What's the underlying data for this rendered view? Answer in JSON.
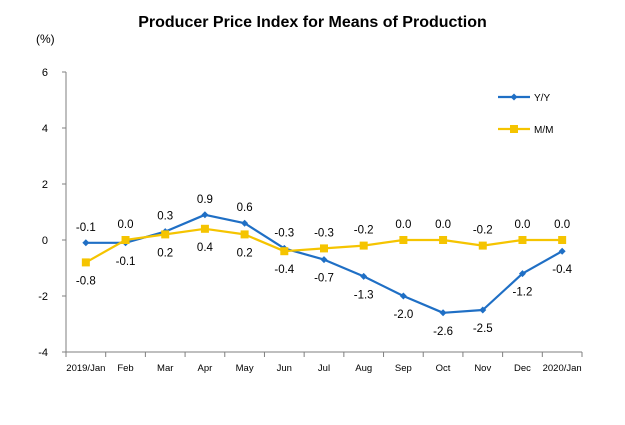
{
  "chart_data": {
    "type": "line",
    "title": "Producer Price Index for Means of Production",
    "ylabel": "(%)",
    "xlabel": "",
    "ylim": [
      -4,
      6
    ],
    "yticks": [
      -4,
      -2,
      0,
      2,
      4,
      6
    ],
    "grid": false,
    "legend_position": "top-right",
    "categories": [
      "2019/Jan",
      "Feb",
      "Mar",
      "Apr",
      "May",
      "Jun",
      "Jul",
      "Aug",
      "Sep",
      "Oct",
      "Nov",
      "Dec",
      "2020/Jan"
    ],
    "series": [
      {
        "name": "Y/Y",
        "color": "#1f6fc5",
        "marker": "diamond",
        "values": [
          -0.1,
          -0.1,
          0.3,
          0.9,
          0.6,
          -0.3,
          -0.7,
          -1.3,
          -2.0,
          -2.6,
          -2.5,
          -1.2,
          -0.4
        ],
        "labels": [
          "-0.1",
          "-0.1",
          "0.3",
          "0.9",
          "0.6",
          "-0.3",
          "-0.7",
          "-1.3",
          "-2.0",
          "-2.6",
          "-2.5",
          "-1.2",
          "-0.4"
        ]
      },
      {
        "name": "M/M",
        "color": "#f5c400",
        "marker": "square",
        "values": [
          -0.8,
          0.0,
          0.2,
          0.4,
          0.2,
          -0.4,
          -0.3,
          -0.2,
          0.0,
          0.0,
          -0.2,
          0.0,
          0.0
        ],
        "labels": [
          "-0.8",
          "0.0",
          "0.2",
          "0.4",
          "0.2",
          "-0.4",
          "-0.3",
          "-0.2",
          "0.0",
          "0.0",
          "-0.2",
          "0.0",
          "0.0"
        ]
      }
    ]
  }
}
